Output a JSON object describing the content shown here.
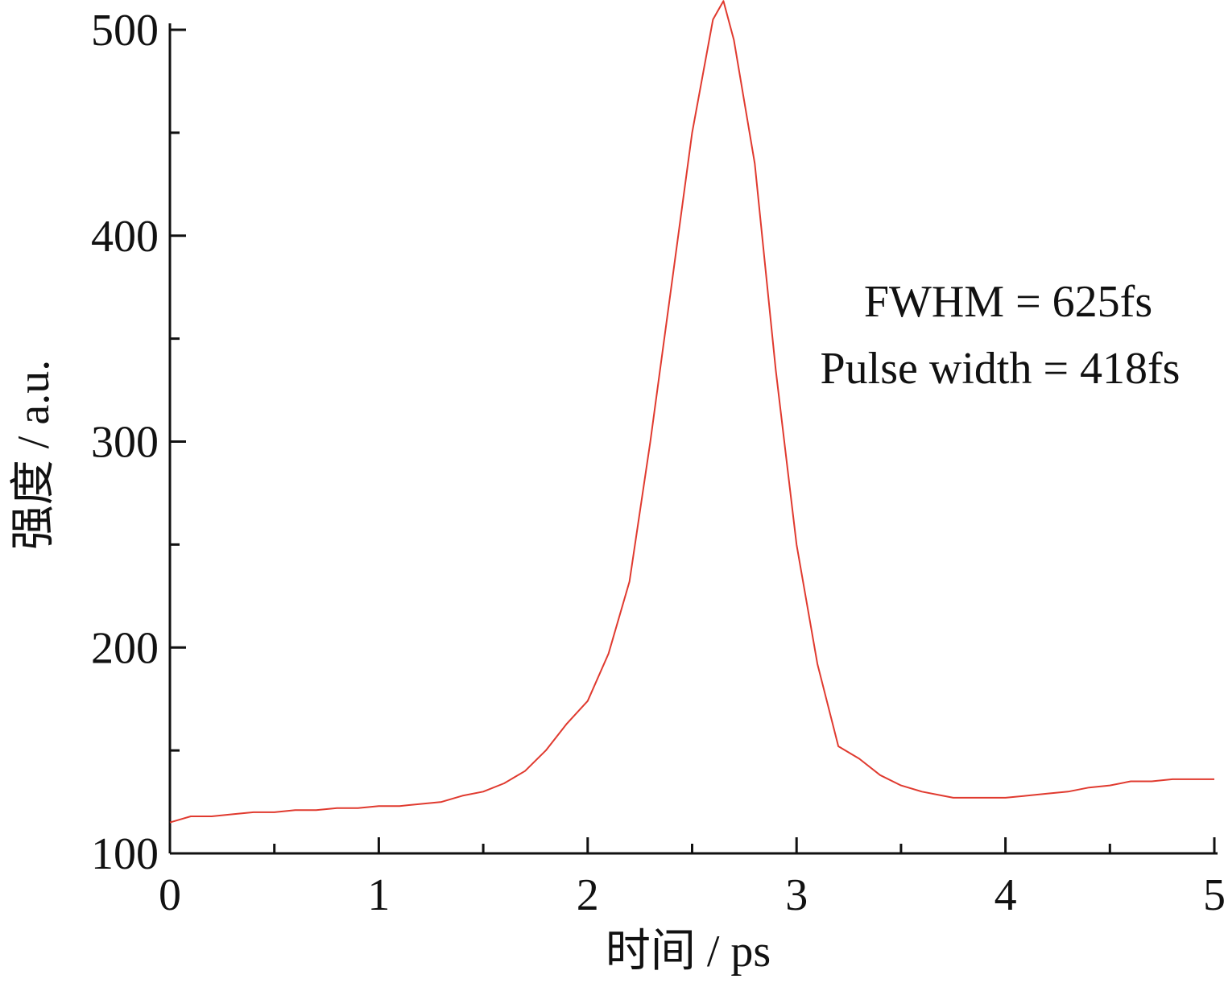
{
  "chart_data": {
    "type": "line",
    "title": "",
    "xlabel": "时间 / ps",
    "ylabel": "强度 / a.u.",
    "xlim": [
      0,
      5
    ],
    "ylim": [
      100,
      500
    ],
    "grid": false,
    "x_ticks": [
      0,
      1,
      2,
      3,
      4,
      5
    ],
    "y_ticks": [
      100,
      200,
      300,
      400,
      500
    ],
    "x_tick_labels": [
      "0",
      "1",
      "2",
      "3",
      "4",
      "5"
    ],
    "y_tick_labels": [
      "100",
      "200",
      "300",
      "400",
      "500"
    ],
    "x_minor_ticks": [
      0.5,
      1.5,
      2.5,
      3.5,
      4.5
    ],
    "y_minor_ticks": [
      150,
      250,
      350,
      450
    ],
    "annotations": [
      "FWHM = 625fs",
      "Pulse width = 418fs"
    ],
    "series": [
      {
        "color": "#e03a2f",
        "x": [
          0.0,
          0.1,
          0.2,
          0.3,
          0.4,
          0.5,
          0.6,
          0.7,
          0.8,
          0.9,
          1.0,
          1.1,
          1.2,
          1.3,
          1.4,
          1.5,
          1.6,
          1.7,
          1.8,
          1.9,
          2.0,
          2.1,
          2.2,
          2.3,
          2.4,
          2.5,
          2.6,
          2.65,
          2.7,
          2.8,
          2.9,
          3.0,
          3.1,
          3.2,
          3.3,
          3.4,
          3.5,
          3.6,
          3.7,
          3.75,
          3.8,
          3.9,
          4.0,
          4.1,
          4.2,
          4.3,
          4.4,
          4.5,
          4.6,
          4.7,
          4.8,
          4.9,
          5.0
        ],
        "y": [
          115,
          118,
          118,
          119,
          120,
          120,
          121,
          121,
          122,
          122,
          123,
          123,
          124,
          125,
          128,
          130,
          134,
          140,
          150,
          163,
          174,
          197,
          232,
          300,
          375,
          450,
          505,
          514,
          495,
          435,
          335,
          250,
          192,
          152,
          146,
          138,
          133,
          130,
          128,
          127,
          127,
          127,
          127,
          128,
          129,
          130,
          132,
          133,
          135,
          135,
          136,
          136,
          136
        ]
      }
    ]
  }
}
